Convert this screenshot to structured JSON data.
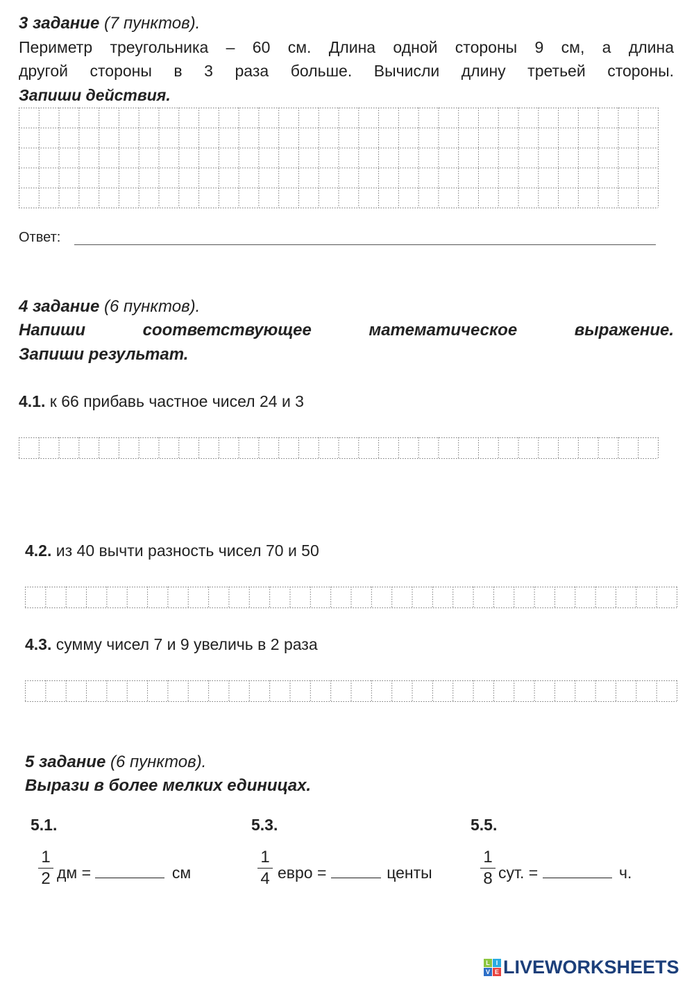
{
  "task3": {
    "title": "3 задание",
    "points": "(7 пунктов).",
    "line1": "Периметр треугольника – 60 см. Длина одной стороны  9 см, а длина",
    "line2": "другой стороны в 3 раза больше. Вычисли длину третьей стороны.",
    "instruction": "Запиши действия.",
    "answer_label": "Ответ:"
  },
  "task4": {
    "title": "4 задание",
    "points": "(6 пунктов).",
    "instruction_line1": "Напиши соответствующее математическое выражение.",
    "instruction_line2": "Запиши результат.",
    "items": [
      {
        "num": "4.1.",
        "text": " к 66 прибавь частное чисел 24 и 3"
      },
      {
        "num": "4.2.",
        "text": " из 40 вычти разность чисел 70 и 50"
      },
      {
        "num": "4.3.",
        "text": " сумму чисел 7 и 9 увеличь в 2 раза"
      }
    ]
  },
  "task5": {
    "title": "5 задание",
    "points": "(6 пунктов).",
    "instruction": "Вырази в более мелких единицах.",
    "items": [
      {
        "num": "5.1.",
        "numerator": "1",
        "denominator": "2",
        "unit_from": "дм =",
        "unit_to": "см"
      },
      {
        "num": "5.3.",
        "numerator": "1",
        "denominator": "4",
        "unit_from": "евро =",
        "unit_to": "центы"
      },
      {
        "num": "5.5.",
        "numerator": "1",
        "denominator": "8",
        "unit_from": "сут. =",
        "unit_to": "ч."
      }
    ]
  },
  "logo": {
    "text": "LIVEWORKSHEETS",
    "badge": [
      "L",
      "I",
      "V",
      "E"
    ],
    "color": "#1c3f7a"
  }
}
